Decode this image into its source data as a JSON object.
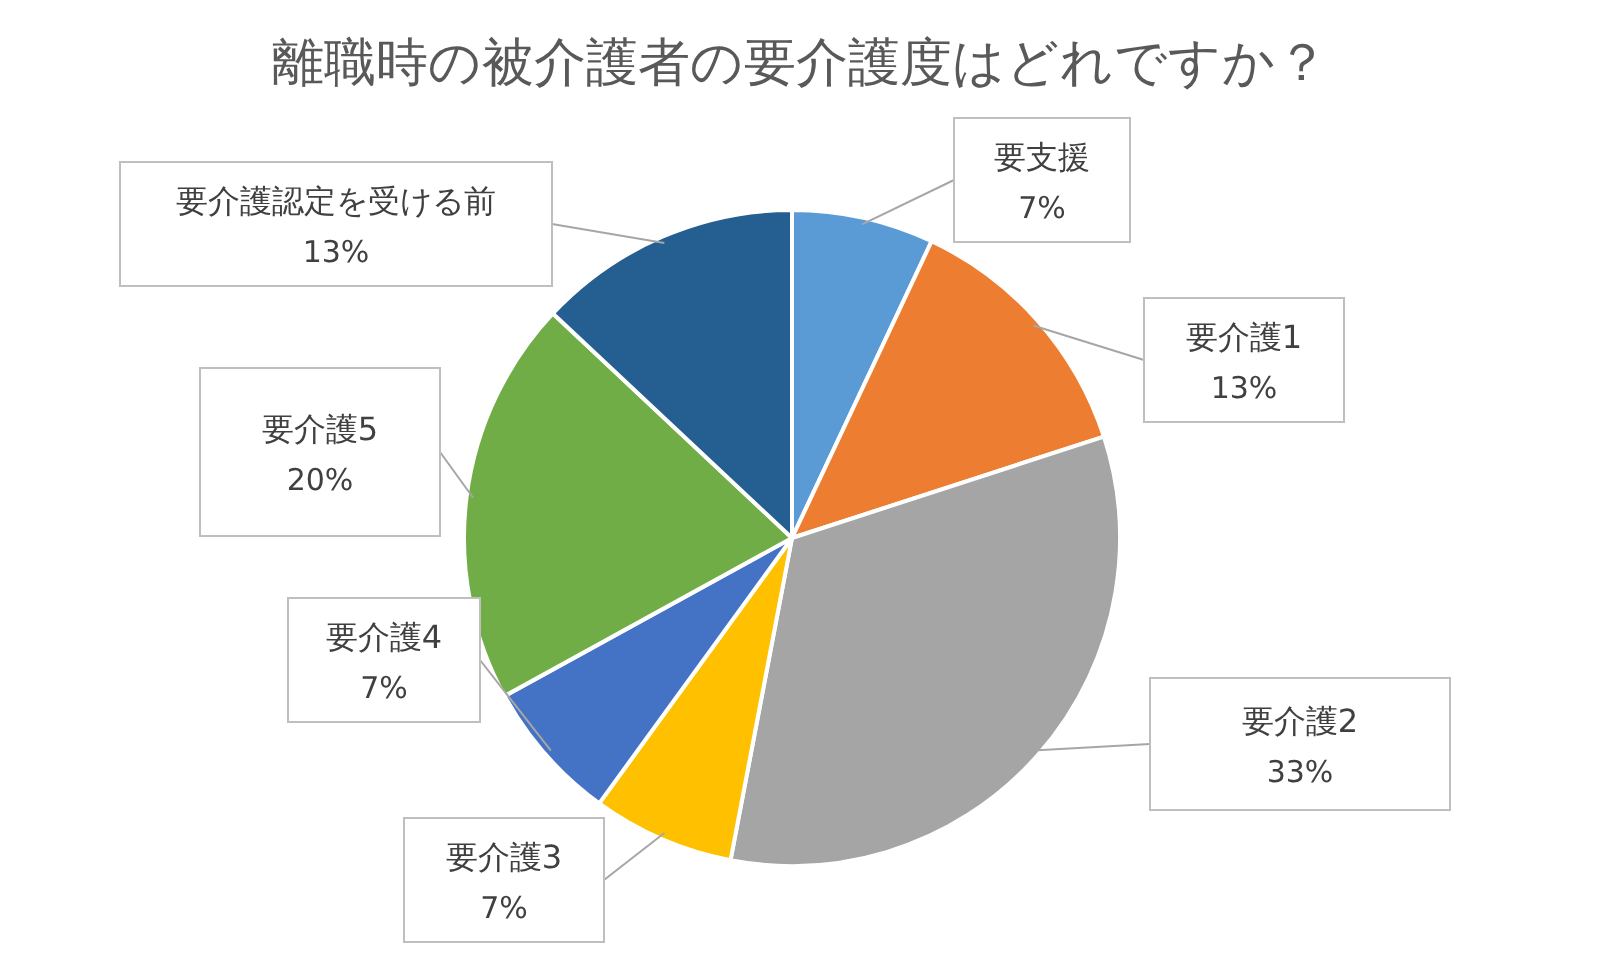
{
  "chart_data": {
    "type": "pie",
    "title": "離職時の被介護者の要介護度はどれですか？",
    "categories": [
      "要支援",
      "要介護1",
      "要介護2",
      "要介護3",
      "要介護4",
      "要介護5",
      "要介護認定を受ける前"
    ],
    "values": [
      7,
      13,
      33,
      7,
      7,
      20,
      13
    ],
    "value_labels": [
      "7%",
      "13%",
      "33%",
      "7%",
      "7%",
      "20%",
      "13%"
    ],
    "colors": [
      "#5b9bd5",
      "#ed7d31",
      "#a5a5a5",
      "#ffc000",
      "#4472c4",
      "#70ad47",
      "#255e91"
    ],
    "legend": false
  }
}
